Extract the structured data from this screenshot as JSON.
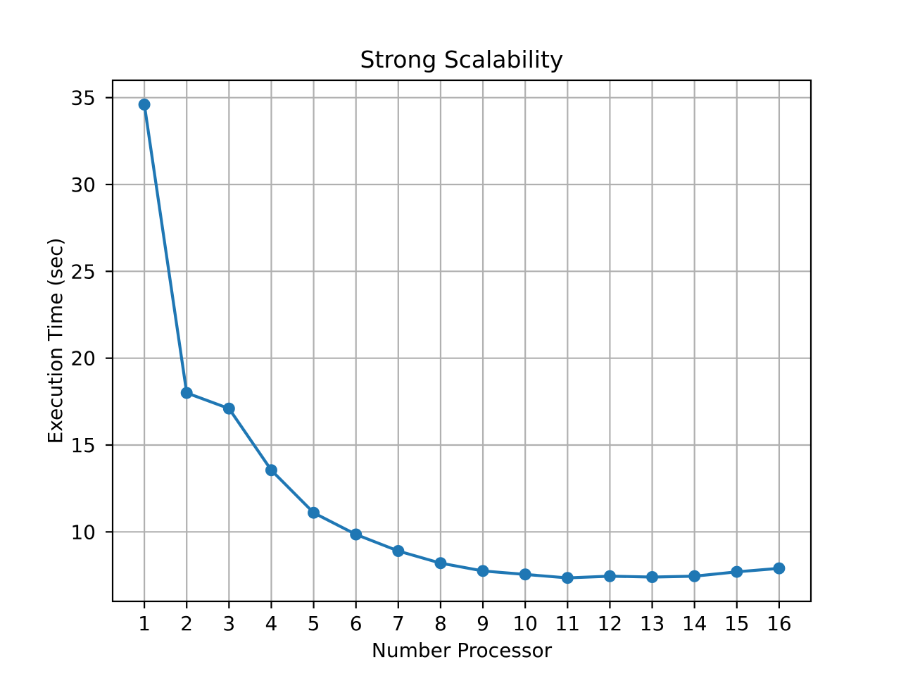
{
  "chart_data": {
    "type": "line",
    "title": "Strong Scalability",
    "xlabel": "Number Processor",
    "ylabel": "Execution Time (sec)",
    "x": [
      1,
      2,
      3,
      4,
      5,
      6,
      7,
      8,
      9,
      10,
      11,
      12,
      13,
      14,
      15,
      16
    ],
    "series": [
      {
        "name": "execution-time",
        "values": [
          34.6,
          18.0,
          17.1,
          13.55,
          11.1,
          9.85,
          8.9,
          8.2,
          7.75,
          7.55,
          7.35,
          7.45,
          7.4,
          7.45,
          7.7,
          7.9
        ]
      }
    ],
    "xticks": [
      1,
      2,
      3,
      4,
      5,
      6,
      7,
      8,
      9,
      10,
      11,
      12,
      13,
      14,
      15,
      16
    ],
    "yticks": [
      10,
      15,
      20,
      25,
      30,
      35
    ],
    "xlim": [
      0.25,
      16.75
    ],
    "ylim": [
      6,
      36
    ],
    "grid": true,
    "legend": false,
    "line_color": "#1f77b4",
    "marker": "o",
    "grid_color": "#b0b0b0",
    "axis_color": "#000000",
    "background_color": "#ffffff"
  }
}
